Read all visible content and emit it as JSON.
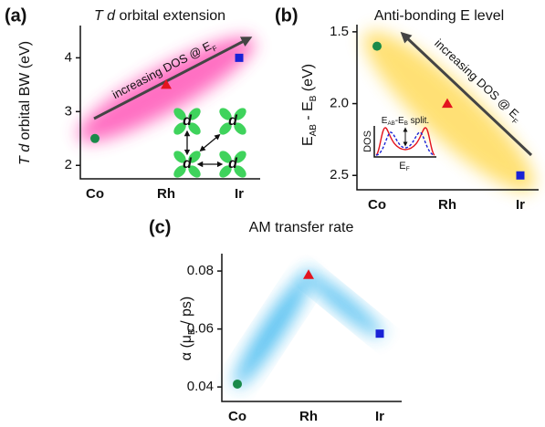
{
  "chart_data": [
    {
      "type": "point",
      "panel_label": "(a)",
      "title": [
        "T d",
        " orbital extension"
      ],
      "ylabel": [
        "T d",
        " orbital BW (eV)"
      ],
      "categories": [
        "Co",
        "Rh",
        "Ir"
      ],
      "values": [
        2.5,
        3.5,
        4.0
      ],
      "colors": [
        "#1a8a4a",
        "#e3141e",
        "#1a22d6"
      ],
      "markers": [
        "circle",
        "triangle",
        "square"
      ],
      "ylim": [
        1.75,
        4.6
      ],
      "yticks": [
        2,
        3,
        4
      ],
      "annotation": [
        "increasing DOS @ E",
        "F"
      ],
      "inset_labels": [
        "d",
        "d",
        "d",
        "d"
      ]
    },
    {
      "type": "point",
      "panel_label": "(b)",
      "title": [
        "Anti-bonding E level"
      ],
      "ylabel": [
        "E",
        "AB",
        " - E",
        "B",
        " (eV)"
      ],
      "categories": [
        "Co",
        "Rh",
        "Ir"
      ],
      "values": [
        1.6,
        2.0,
        2.5
      ],
      "colors": [
        "#1a8a4a",
        "#e3141e",
        "#1a22d6"
      ],
      "markers": [
        "circle",
        "triangle",
        "square"
      ],
      "ylim": [
        2.6,
        1.45
      ],
      "yticks": [
        1.5,
        {
          "value": 2,
          "label": "2.0"
        },
        2.5
      ],
      "annotation": [
        "increasing DOS @ E",
        "F"
      ],
      "inset": {
        "ylabel": "DOS",
        "title": [
          "E",
          "AB",
          "-E",
          "B",
          " split."
        ],
        "xlabel": [
          "E",
          "F"
        ]
      }
    },
    {
      "type": "point",
      "panel_label": "(c)",
      "title": [
        "AM transfer rate"
      ],
      "ylabel": [
        "α (μ",
        "B",
        " / ps)"
      ],
      "categories": [
        "Co",
        "Rh",
        "Ir"
      ],
      "values": [
        0.041,
        0.0787,
        0.0584
      ],
      "colors": [
        "#1a8a4a",
        "#e3141e",
        "#1a22d6"
      ],
      "markers": [
        "circle",
        "triangle",
        "square"
      ],
      "ylim": [
        0.035,
        0.086
      ],
      "yticks": [
        0.04,
        0.06,
        0.08
      ]
    }
  ]
}
